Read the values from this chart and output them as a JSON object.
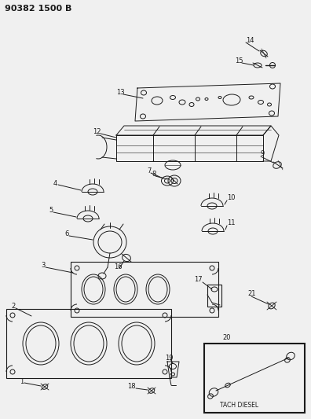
{
  "title": "90382 1500 B",
  "bg": "#f0f0f0",
  "lc": "#1a1a1a",
  "fig_w": 3.96,
  "fig_h": 5.33,
  "dpi": 100
}
